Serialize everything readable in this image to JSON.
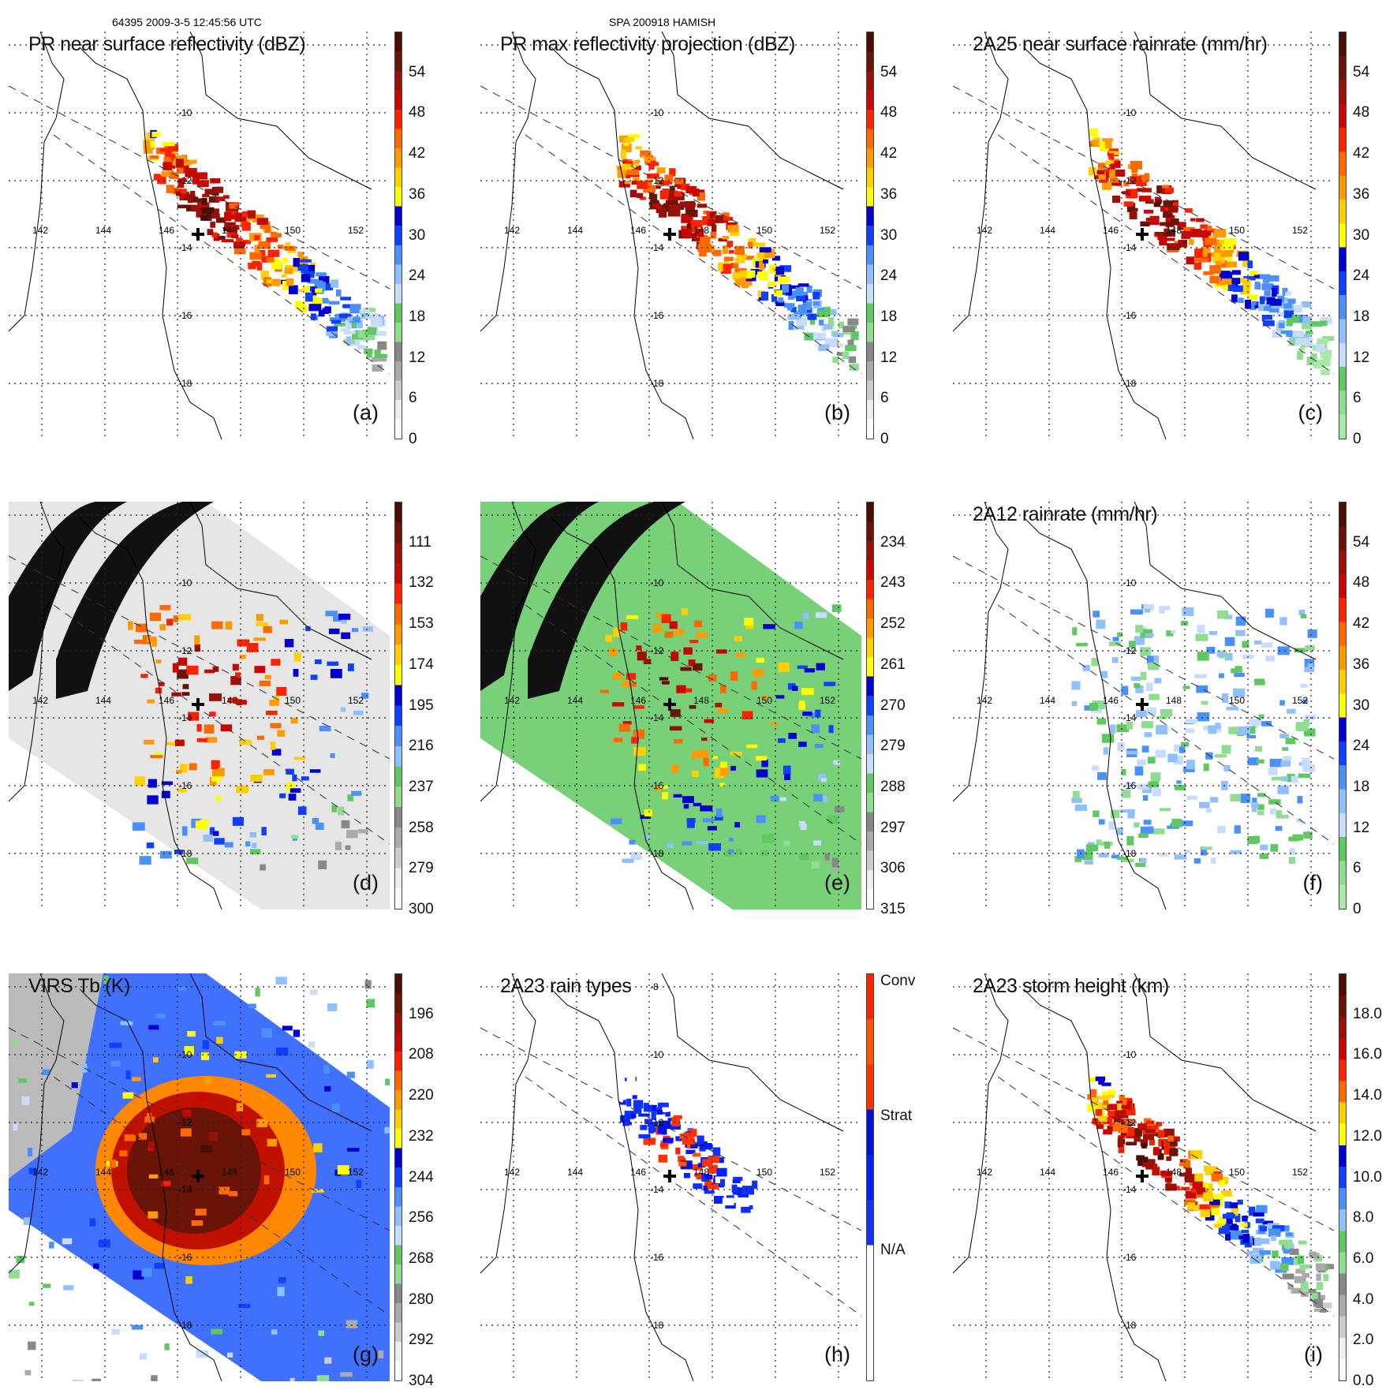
{
  "header": {
    "left": "64395 2009-3-5 12:45:56 UTC",
    "center": "SPA 200918 HAMISH"
  },
  "map": {
    "lon_labels": [
      "142",
      "144",
      "146",
      "148",
      "150",
      "152"
    ],
    "lat_labels": [
      "-8",
      "-10",
      "-12",
      "-14",
      "-16",
      "-18"
    ]
  },
  "panels": [
    {
      "id": "a",
      "title": "PR near surface reflectivity (dBZ)",
      "label": "(a)",
      "ticks": [
        "54",
        "48",
        "42",
        "36",
        "30",
        "24",
        "18",
        "12",
        "6",
        "0"
      ],
      "scheme": "dbz",
      "style": "swath"
    },
    {
      "id": "b",
      "title": "PR max reflectivity projection (dBZ)",
      "label": "(b)",
      "ticks": [
        "54",
        "48",
        "42",
        "36",
        "30",
        "24",
        "18",
        "12",
        "6",
        "0"
      ],
      "scheme": "dbz",
      "style": "swath"
    },
    {
      "id": "c",
      "title": "2A25 near surface rainrate (mm/hr)",
      "label": "(c)",
      "ticks": [
        "54",
        "48",
        "42",
        "36",
        "30",
        "24",
        "18",
        "12",
        "6",
        "0"
      ],
      "scheme": "rain",
      "style": "swath"
    },
    {
      "id": "d",
      "title": "",
      "label": "(d)",
      "ticks": [
        "111",
        "132",
        "153",
        "174",
        "195",
        "216",
        "237",
        "258",
        "279",
        "300"
      ],
      "scheme": "tb",
      "style": "tmi"
    },
    {
      "id": "e",
      "title": "",
      "label": "(e)",
      "ticks": [
        "234",
        "243",
        "252",
        "261",
        "270",
        "279",
        "288",
        "297",
        "306",
        "315"
      ],
      "scheme": "dbz",
      "style": "tmi"
    },
    {
      "id": "f",
      "title": "2A12 rainrate (mm/hr)",
      "label": "(f)",
      "ticks": [
        "54",
        "48",
        "42",
        "36",
        "30",
        "24",
        "18",
        "12",
        "6",
        "0"
      ],
      "scheme": "rain",
      "style": "tmirain"
    },
    {
      "id": "g",
      "title": "VIRS Tb (K)",
      "label": "(g)",
      "ticks": [
        "196",
        "208",
        "220",
        "232",
        "244",
        "256",
        "268",
        "280",
        "292",
        "304"
      ],
      "scheme": "dbz",
      "style": "virs"
    },
    {
      "id": "h",
      "title": "2A23 rain types",
      "label": "(h)",
      "ticks": [
        "Conv",
        "Strat",
        "N/A"
      ],
      "scheme": "types",
      "style": "swath"
    },
    {
      "id": "i",
      "title": "2A23 storm height (km)",
      "label": "(i)",
      "ticks": [
        "18.0",
        "16.0",
        "14.0",
        "12.0",
        "10.0",
        "8.0",
        "6.0",
        "4.0",
        "2.0",
        "0.0"
      ],
      "scheme": "height",
      "style": "swath"
    }
  ],
  "colors": {
    "dark": "#5a1008",
    "red": "#e01000",
    "orange": "#ff8800",
    "yellow": "#ffee00",
    "blue": "#0010e0",
    "lightblue": "#60a8ff",
    "green": "#70d070",
    "grey": "#909090"
  }
}
